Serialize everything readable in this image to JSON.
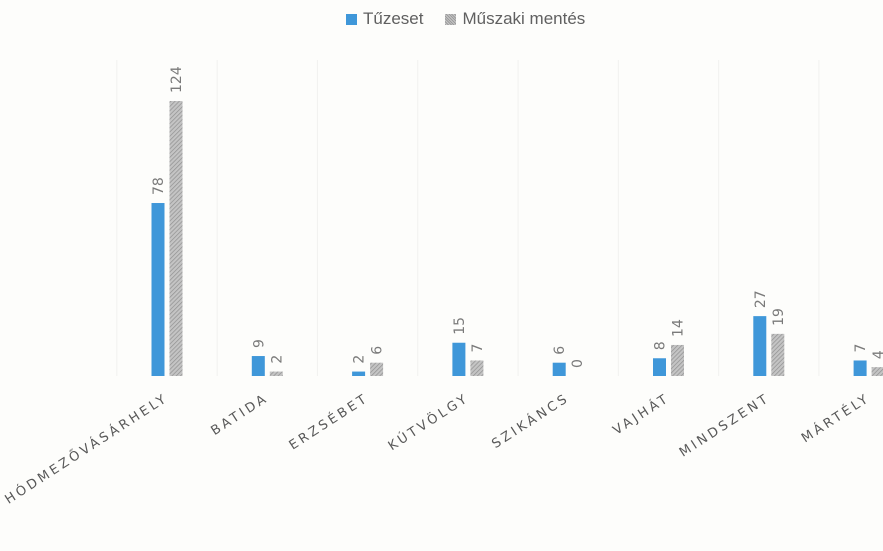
{
  "chart_data": {
    "type": "bar",
    "title": "",
    "xlabel": "",
    "ylabel": "",
    "legend_position": "top-center",
    "grid": true,
    "ylim": [
      0,
      124
    ],
    "categories": [
      "HÓDMEZŐVÁSÁRHELY",
      "BATIDA",
      "ERZSÉBET",
      "KÚTVÖLGY",
      "SZIKÁNCS",
      "VAJHÁT",
      "MINDSZENT",
      "MÁRTÉLY"
    ],
    "series": [
      {
        "name": "Tűzeset",
        "color": "#3f97d9",
        "values": [
          78,
          9,
          2,
          15,
          6,
          8,
          27,
          7
        ]
      },
      {
        "name": "Műszaki mentés",
        "color": "#a9a9a9",
        "values": [
          124,
          2,
          6,
          7,
          0,
          14,
          19,
          4
        ]
      }
    ]
  }
}
